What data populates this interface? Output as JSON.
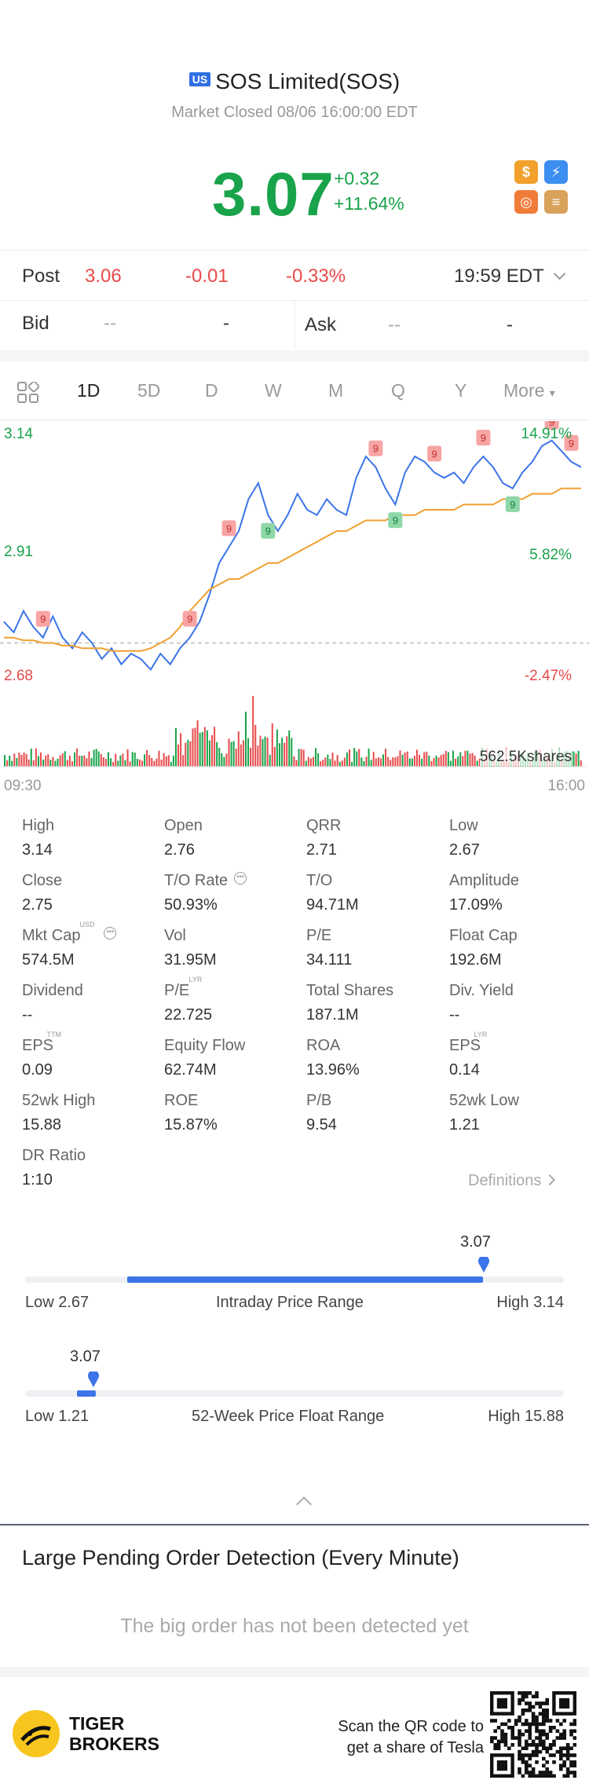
{
  "header": {
    "market_badge": "US",
    "title": "SOS Limited(SOS)",
    "status": "Market Closed 08/06 16:00:00 EDT",
    "price": "3.07",
    "change": "+0.32",
    "change_pct": "+11.64%"
  },
  "post": {
    "label": "Post",
    "price": "3.06",
    "change": "-0.01",
    "change_pct": "-0.33%",
    "time": "19:59 EDT"
  },
  "quote": {
    "bid_label": "Bid",
    "bid_price": "--",
    "bid_size": "-",
    "ask_label": "Ask",
    "ask_price": "--",
    "ask_size": "-"
  },
  "tabs": [
    "1D",
    "5D",
    "D",
    "W",
    "M",
    "Q",
    "Y",
    "More"
  ],
  "active_tab": "1D",
  "chart_data": {
    "type": "line",
    "x_start": "09:30",
    "x_end": "16:00",
    "y_left_labels": [
      "3.14",
      "2.91",
      "2.68"
    ],
    "y_right_labels": [
      "14.91%",
      "5.82%",
      "-2.47%"
    ],
    "reference_close": 2.75,
    "series": [
      {
        "values": [
          2.79,
          2.77,
          2.81,
          2.78,
          2.76,
          2.8,
          2.76,
          2.74,
          2.77,
          2.75,
          2.72,
          2.74,
          2.71,
          2.73,
          2.72,
          2.7,
          2.73,
          2.71,
          2.74,
          2.76,
          2.79,
          2.84,
          2.9,
          2.93,
          2.96,
          3.02,
          3.05,
          2.99,
          2.96,
          2.99,
          3.03,
          3.0,
          2.99,
          3.02,
          3.0,
          2.99,
          3.06,
          3.1,
          3.08,
          3.04,
          3.01,
          3.07,
          3.1,
          3.09,
          3.07,
          3.06,
          3.07,
          3.05,
          3.08,
          3.1,
          3.08,
          3.05,
          3.04,
          3.07,
          3.09,
          3.12,
          3.13,
          3.11,
          3.09,
          3.08
        ]
      },
      {
        "values": [
          2.76,
          2.76,
          2.755,
          2.755,
          2.75,
          2.75,
          2.745,
          2.745,
          2.74,
          2.74,
          2.74,
          2.735,
          2.735,
          2.735,
          2.735,
          2.74,
          2.75,
          2.76,
          2.78,
          2.81,
          2.83,
          2.85,
          2.86,
          2.87,
          2.87,
          2.88,
          2.89,
          2.9,
          2.9,
          2.91,
          2.92,
          2.93,
          2.94,
          2.95,
          2.96,
          2.96,
          2.97,
          2.98,
          2.98,
          2.98,
          2.99,
          2.99,
          2.99,
          3.0,
          3.0,
          3.0,
          3.0,
          3.01,
          3.01,
          3.01,
          3.01,
          3.02,
          3.02,
          3.02,
          3.03,
          3.03,
          3.03,
          3.04,
          3.04,
          3.04
        ]
      }
    ],
    "volume_label": "562.5Kshares",
    "ylim": [
      2.68,
      3.14
    ]
  },
  "stats": [
    {
      "label": "High",
      "value": "3.14"
    },
    {
      "label": "Open",
      "value": "2.76"
    },
    {
      "label": "QRR",
      "value": "2.71"
    },
    {
      "label": "Low",
      "value": "2.67"
    },
    {
      "label": "Close",
      "value": "2.75"
    },
    {
      "label": "T/O Rate",
      "value": "50.93%"
    },
    {
      "label": "T/O",
      "value": "94.71M"
    },
    {
      "label": "Amplitude",
      "value": "17.09%"
    },
    {
      "label": "Mkt Cap",
      "value": "574.5M",
      "sup": "USD"
    },
    {
      "label": "Vol",
      "value": "31.95M"
    },
    {
      "label": "P/E",
      "value": "34.111"
    },
    {
      "label": "Float Cap",
      "value": "192.6M"
    },
    {
      "label": "Dividend",
      "value": "--"
    },
    {
      "label": "P/E",
      "value": "22.725",
      "sup": "LYR"
    },
    {
      "label": "Total Shares",
      "value": "187.1M"
    },
    {
      "label": "Div. Yield",
      "value": "--"
    },
    {
      "label": "EPS",
      "value": "0.09",
      "sup": "TTM"
    },
    {
      "label": "Equity Flow",
      "value": "62.74M"
    },
    {
      "label": "ROA",
      "value": "13.96%"
    },
    {
      "label": "EPS",
      "value": "0.14",
      "sup": "LYR"
    },
    {
      "label": "52wk High",
      "value": "15.88"
    },
    {
      "label": "ROE",
      "value": "15.87%"
    },
    {
      "label": "P/B",
      "value": "9.54"
    },
    {
      "label": "52wk Low",
      "value": "1.21"
    },
    {
      "label": "DR Ratio",
      "value": "1:10"
    }
  ],
  "definitions_link": "Definitions",
  "intraday_range": {
    "current": "3.07",
    "low_label": "Low 2.67",
    "title": "Intraday Price Range",
    "high_label": "High 3.14",
    "position": 0.85
  },
  "week52_range": {
    "current": "3.07",
    "low_label": "Low 1.21",
    "title": "52-Week Price Float Range",
    "high_label": "High 15.88",
    "position": 0.127
  },
  "large_order": {
    "title": "Large Pending Order Detection (Every Minute)",
    "empty": "The big order has not been detected yet"
  },
  "footer": {
    "brand_line1": "TIGER",
    "brand_line2": "BROKERS",
    "scan_line1": "Scan the QR code to",
    "scan_line2": "get a share of Tesla"
  },
  "colors": {
    "up": "#19a34a",
    "down": "#e84a4a",
    "accent": "#3b74e8",
    "avg_line": "#f0a030"
  }
}
